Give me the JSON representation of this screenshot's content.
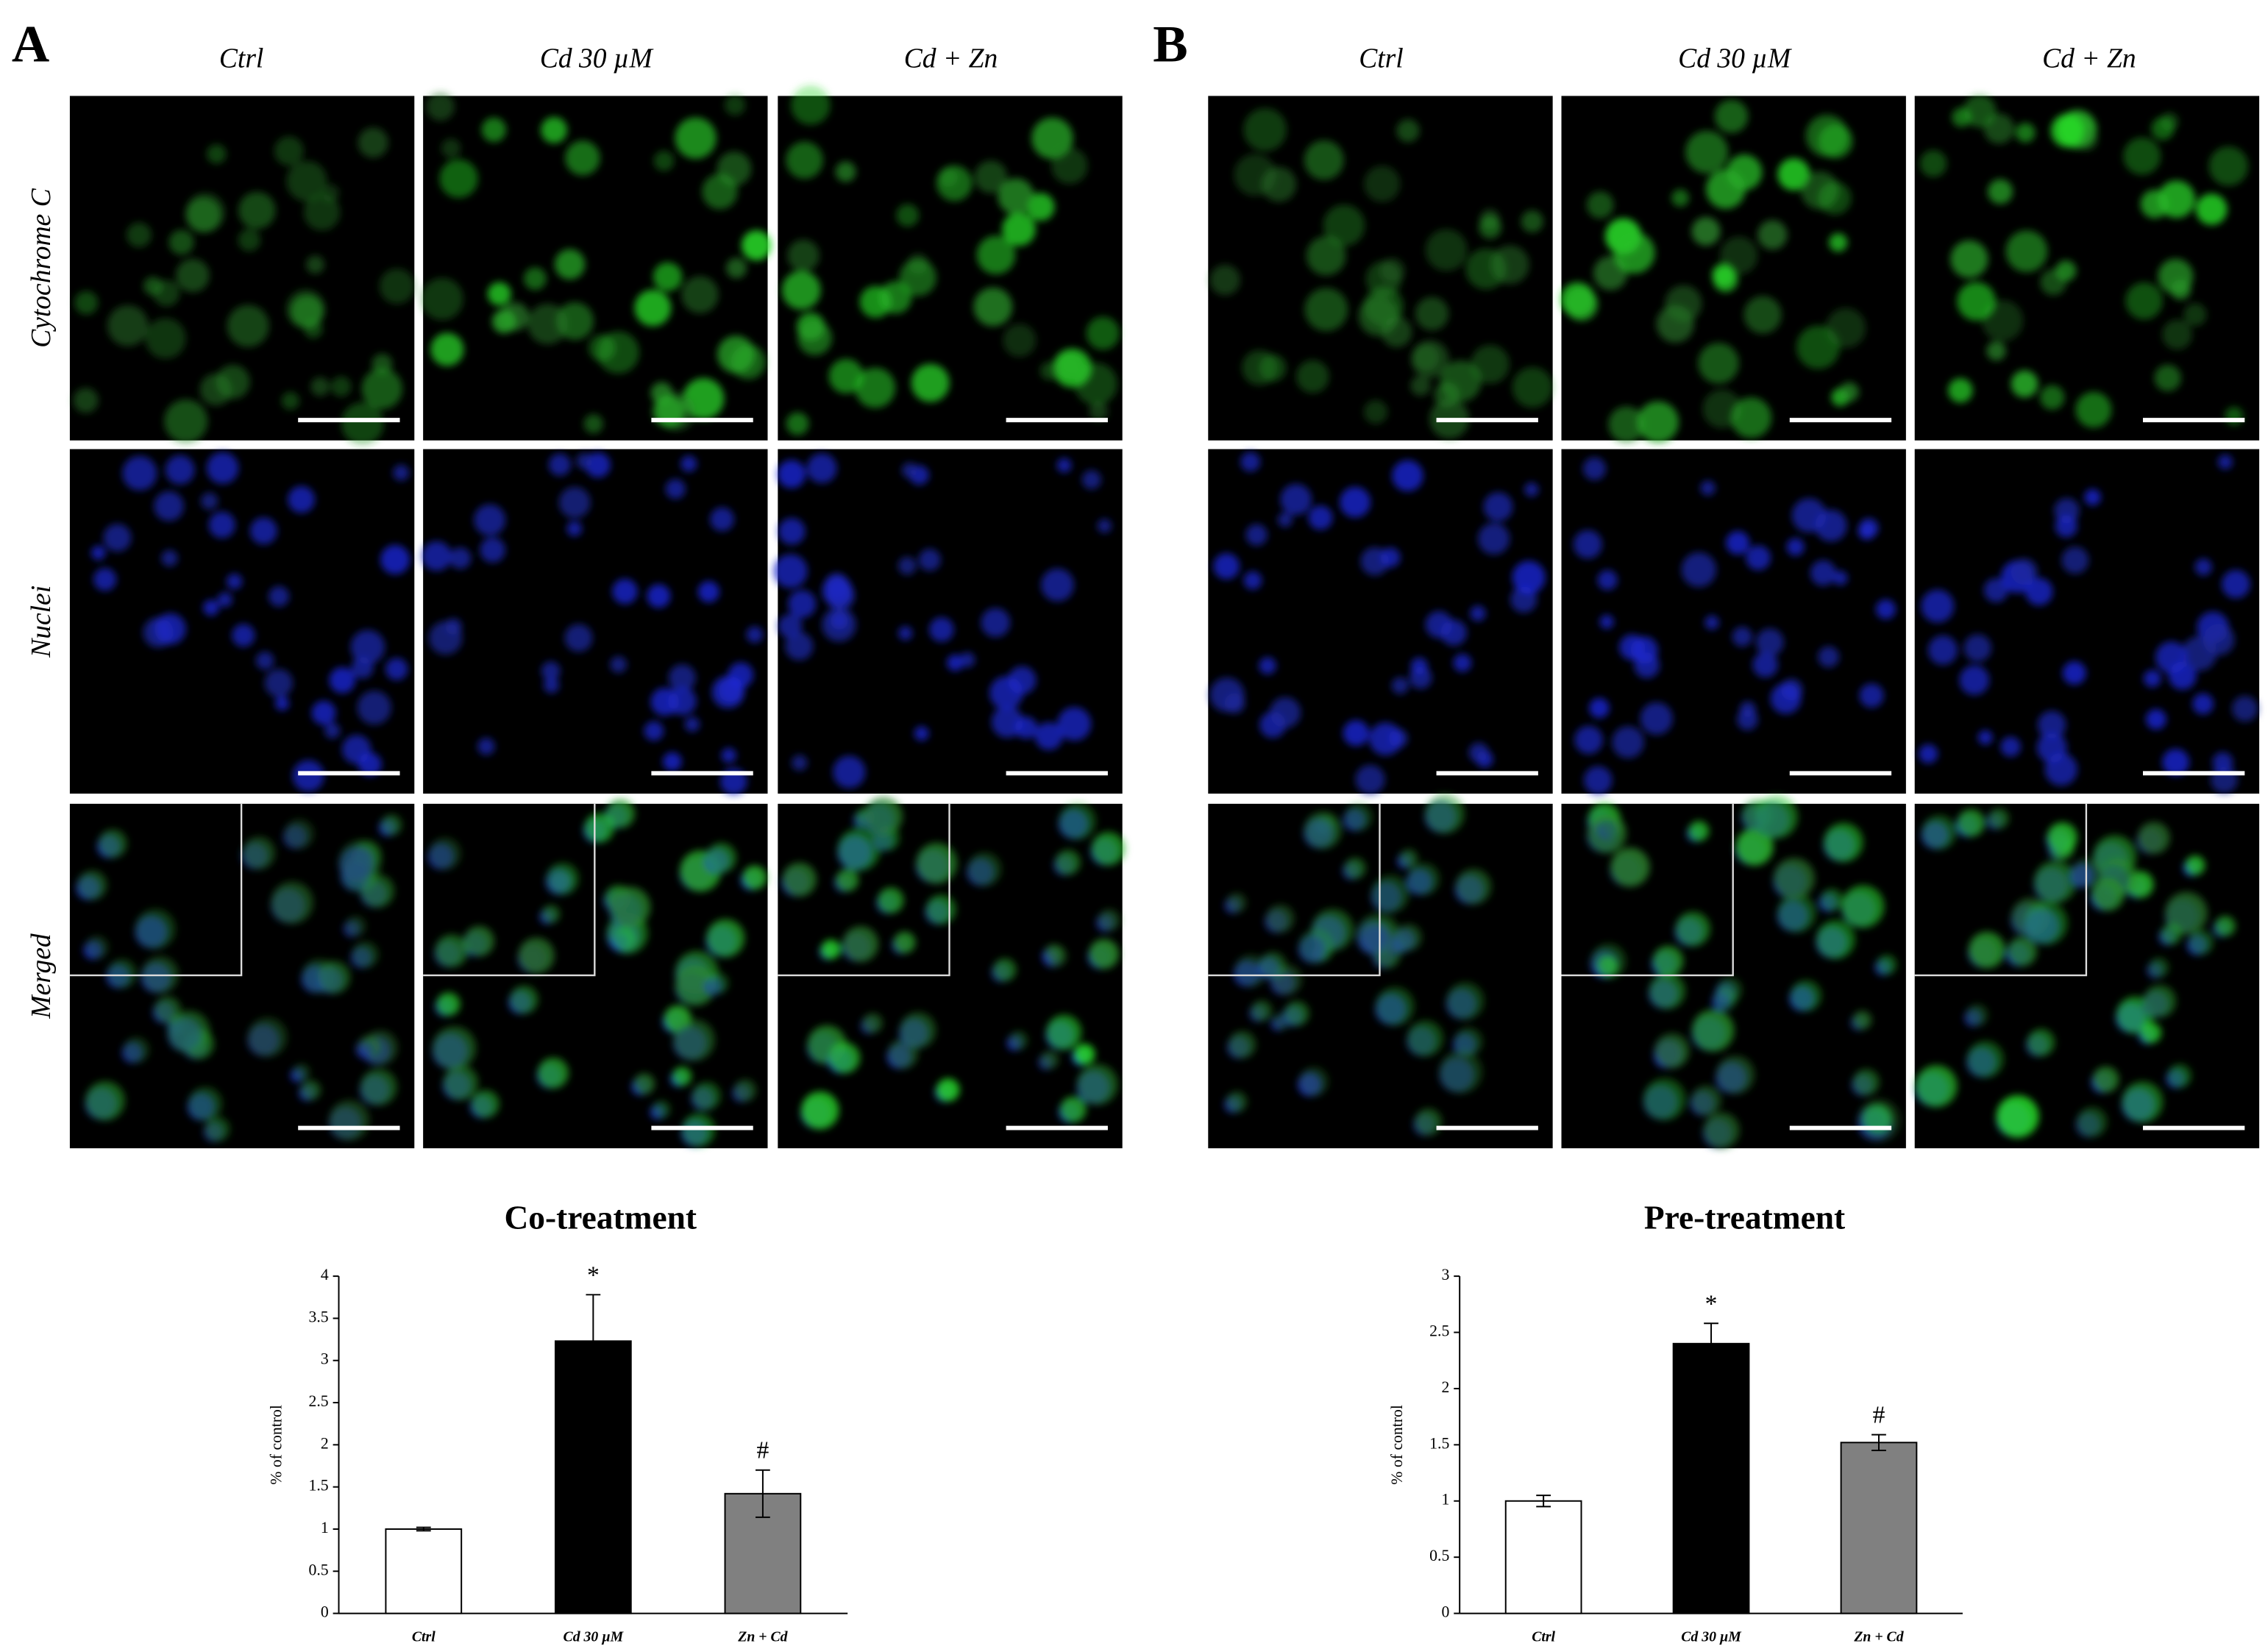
{
  "panels": [
    {
      "label": "A",
      "columns": [
        "Ctrl",
        "Cd 30 µM",
        "Cd + Zn"
      ],
      "rows": [
        "Cytochrome C",
        "Nuclei",
        "Merged"
      ]
    },
    {
      "label": "B",
      "columns": [
        "Ctrl",
        "Cd 30 µM",
        "Cd + Zn"
      ],
      "rows": [
        "Cytochrome C",
        "Nuclei",
        "Merged"
      ]
    }
  ],
  "chart_data": [
    {
      "type": "bar",
      "title": "Co-treatment",
      "y_label": "% of control",
      "categories": [
        "Ctrl",
        "Cd 30 µM",
        "Zn + Cd"
      ],
      "values": [
        1.0,
        3.23,
        1.42
      ],
      "errors": [
        0.02,
        0.55,
        0.28
      ],
      "colors": [
        "#ffffff",
        "#000000",
        "#808080"
      ],
      "value_annotations": [
        null,
        "*",
        "#"
      ],
      "ylim": [
        0,
        4
      ],
      "yticks": [
        0,
        0.5,
        1,
        1.5,
        2,
        2.5,
        3,
        3.5,
        4
      ]
    },
    {
      "type": "bar",
      "title": "Pre-treatment",
      "y_label": "% of control",
      "categories": [
        "Ctrl",
        "Cd 30 µM",
        "Zn + Cd"
      ],
      "values": [
        1.0,
        2.4,
        1.52
      ],
      "errors": [
        0.05,
        0.18,
        0.07
      ],
      "colors": [
        "#ffffff",
        "#000000",
        "#808080"
      ],
      "value_annotations": [
        null,
        "*",
        "#"
      ],
      "ylim": [
        0,
        3
      ],
      "yticks": [
        0,
        0.5,
        1,
        1.5,
        2,
        2.5,
        3
      ]
    }
  ]
}
